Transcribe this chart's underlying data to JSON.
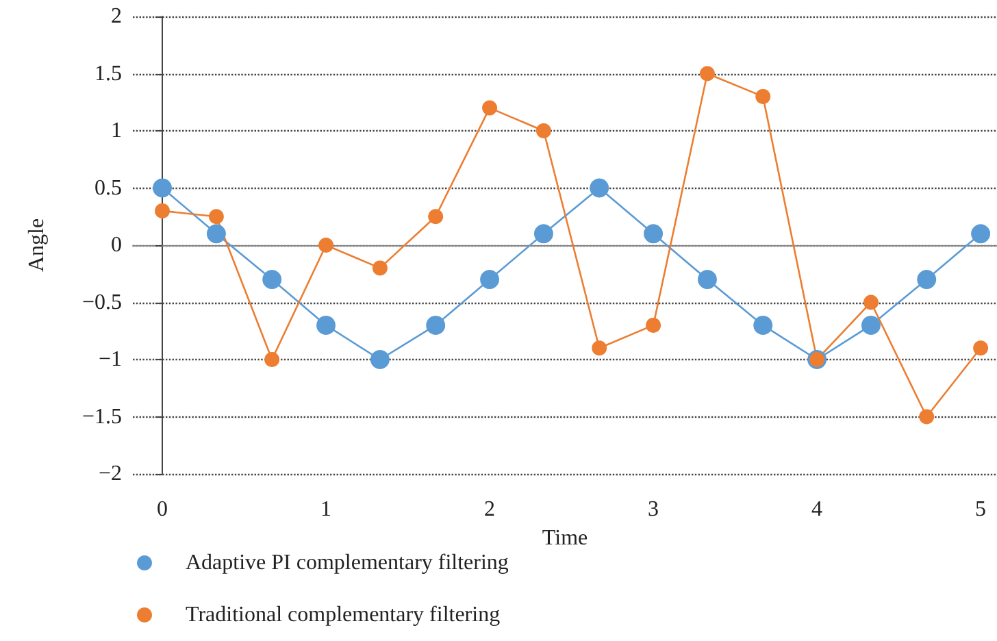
{
  "chart_data": {
    "type": "line",
    "xlabel": "Time",
    "ylabel": "Angle",
    "xlim": [
      -0.18,
      5.1
    ],
    "xticks": [
      0,
      1,
      2,
      3,
      4,
      5
    ],
    "ylim": [
      -2,
      2
    ],
    "yticks": [
      {
        "value": -2,
        "label": "−2"
      },
      {
        "value": -1.5,
        "label": "−1.5"
      },
      {
        "value": -1,
        "label": "−1"
      },
      {
        "value": -0.5,
        "label": "−0.5"
      },
      0,
      0.5,
      1,
      1.5,
      2
    ],
    "grid": "y",
    "legend": "bottom",
    "marker": "circle",
    "line_style": "solid",
    "series": [
      {
        "name": "Adaptive PI complementary filtering",
        "color": "#5b9bd5",
        "x": [
          0,
          0.33,
          0.67,
          1,
          1.33,
          1.67,
          2,
          2.33,
          2.67,
          3,
          3.33,
          3.67,
          4,
          4.33,
          4.67,
          5
        ],
        "values": [
          0.5,
          0.1,
          -0.3,
          -0.7,
          -1,
          -0.7,
          -0.3,
          0.1,
          0.5,
          0.1,
          -0.3,
          -0.7,
          -1,
          -0.7,
          -0.3,
          0.1
        ]
      },
      {
        "name": "Traditional complementary filtering",
        "color": "#ed7d31",
        "x": [
          0,
          0.33,
          0.67,
          1,
          1.33,
          1.67,
          2,
          2.33,
          2.67,
          3,
          3.33,
          3.67,
          4,
          4.33,
          4.67,
          5
        ],
        "values": [
          0.3,
          0.25,
          -1,
          0,
          -0.2,
          0.25,
          1.2,
          1.0,
          -0.9,
          -0.7,
          1.5,
          1.3,
          -1,
          -0.5,
          -1.5,
          -0.9
        ]
      }
    ]
  }
}
